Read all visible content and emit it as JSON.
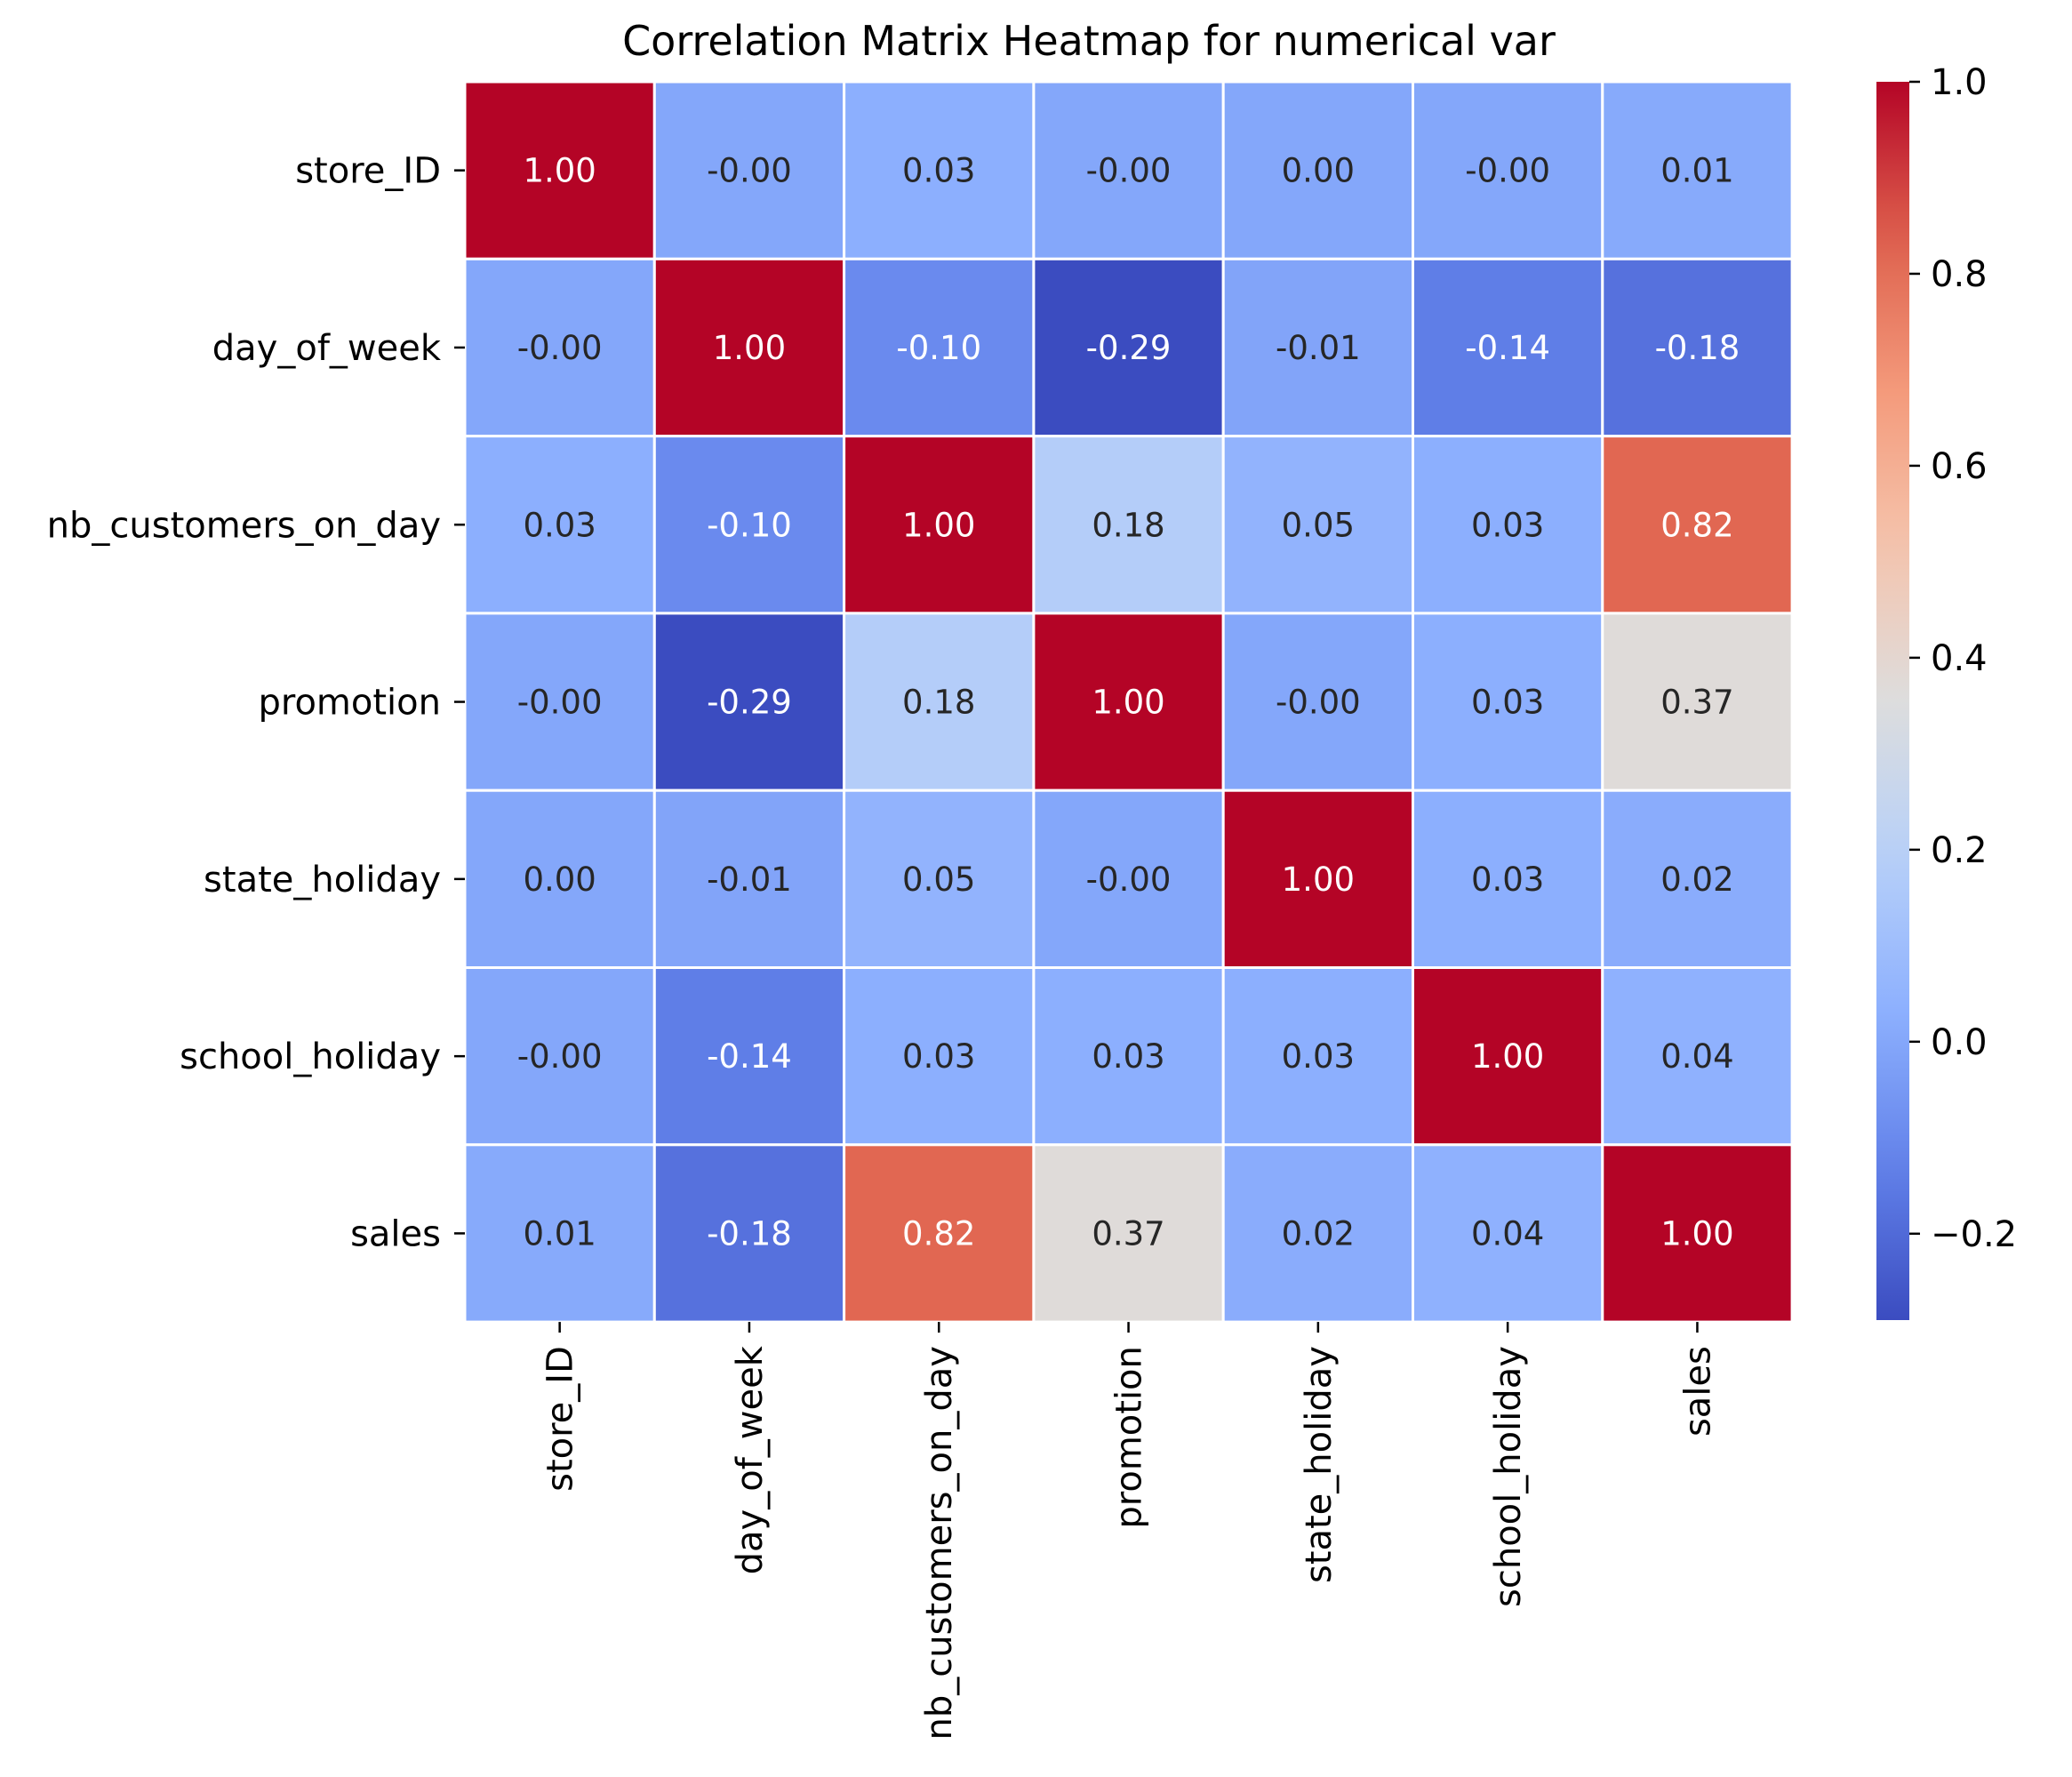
{
  "chart_data": {
    "type": "heatmap",
    "title": "Correlation Matrix Heatmap for numerical var",
    "row_labels": [
      "store_ID",
      "day_of_week",
      "nb_customers_on_day",
      "promotion",
      "state_holiday",
      "school_holiday",
      "sales"
    ],
    "col_labels": [
      "store_ID",
      "day_of_week",
      "nb_customers_on_day",
      "promotion",
      "state_holiday",
      "school_holiday",
      "sales"
    ],
    "values": [
      [
        1.0,
        -0.0,
        0.03,
        -0.0,
        0.0,
        -0.0,
        0.01
      ],
      [
        -0.0,
        1.0,
        -0.1,
        -0.29,
        -0.01,
        -0.14,
        -0.18
      ],
      [
        0.03,
        -0.1,
        1.0,
        0.18,
        0.05,
        0.03,
        0.82
      ],
      [
        -0.0,
        -0.29,
        0.18,
        1.0,
        -0.0,
        0.03,
        0.37
      ],
      [
        0.0,
        -0.01,
        0.05,
        -0.0,
        1.0,
        0.03,
        0.02
      ],
      [
        -0.0,
        -0.14,
        0.03,
        0.03,
        0.03,
        1.0,
        0.04
      ],
      [
        0.01,
        -0.18,
        0.82,
        0.37,
        0.02,
        0.04,
        1.0
      ]
    ],
    "cell_labels": [
      [
        "1.00",
        "-0.00",
        "0.03",
        "-0.00",
        "0.00",
        "-0.00",
        "0.01"
      ],
      [
        "-0.00",
        "1.00",
        "-0.10",
        "-0.29",
        "-0.01",
        "-0.14",
        "-0.18"
      ],
      [
        "0.03",
        "-0.10",
        "1.00",
        "0.18",
        "0.05",
        "0.03",
        "0.82"
      ],
      [
        "-0.00",
        "-0.29",
        "0.18",
        "1.00",
        "-0.00",
        "0.03",
        "0.37"
      ],
      [
        "0.00",
        "-0.01",
        "0.05",
        "-0.00",
        "1.00",
        "0.03",
        "0.02"
      ],
      [
        "-0.00",
        "-0.14",
        "0.03",
        "0.03",
        "0.03",
        "1.00",
        "0.04"
      ],
      [
        "0.01",
        "-0.18",
        "0.82",
        "0.37",
        "0.02",
        "0.04",
        "1.00"
      ]
    ],
    "colormap": "coolwarm",
    "color_range": [
      -0.29,
      1.0
    ],
    "colorbar": {
      "ticks": [
        1.0,
        0.8,
        0.6,
        0.4,
        0.2,
        0.0,
        -0.2
      ],
      "tick_labels": [
        "1.0",
        "0.8",
        "0.6",
        "0.4",
        "0.2",
        "0.0",
        "−0.2"
      ]
    },
    "cell_border_color": "#ffffff",
    "grid": false
  }
}
